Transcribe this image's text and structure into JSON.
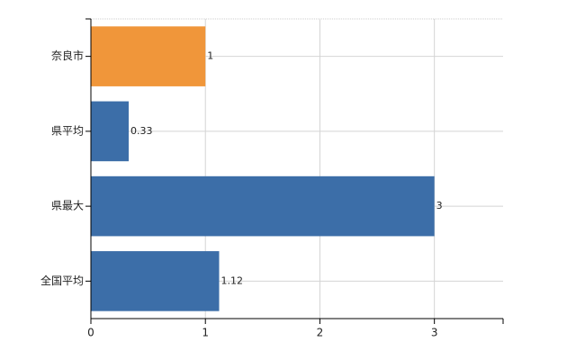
{
  "chart_data": {
    "type": "bar",
    "orientation": "horizontal",
    "categories": [
      "奈良市",
      "県平均",
      "県最大",
      "全国平均"
    ],
    "values": [
      1,
      0.33,
      3,
      1.12
    ],
    "colors": [
      "#f0963a",
      "#3c6ea8",
      "#3c6ea8",
      "#3c6ea8"
    ],
    "xlim": [
      0,
      3.6
    ],
    "xticks": [
      0,
      1,
      2,
      3
    ],
    "grid": true
  }
}
